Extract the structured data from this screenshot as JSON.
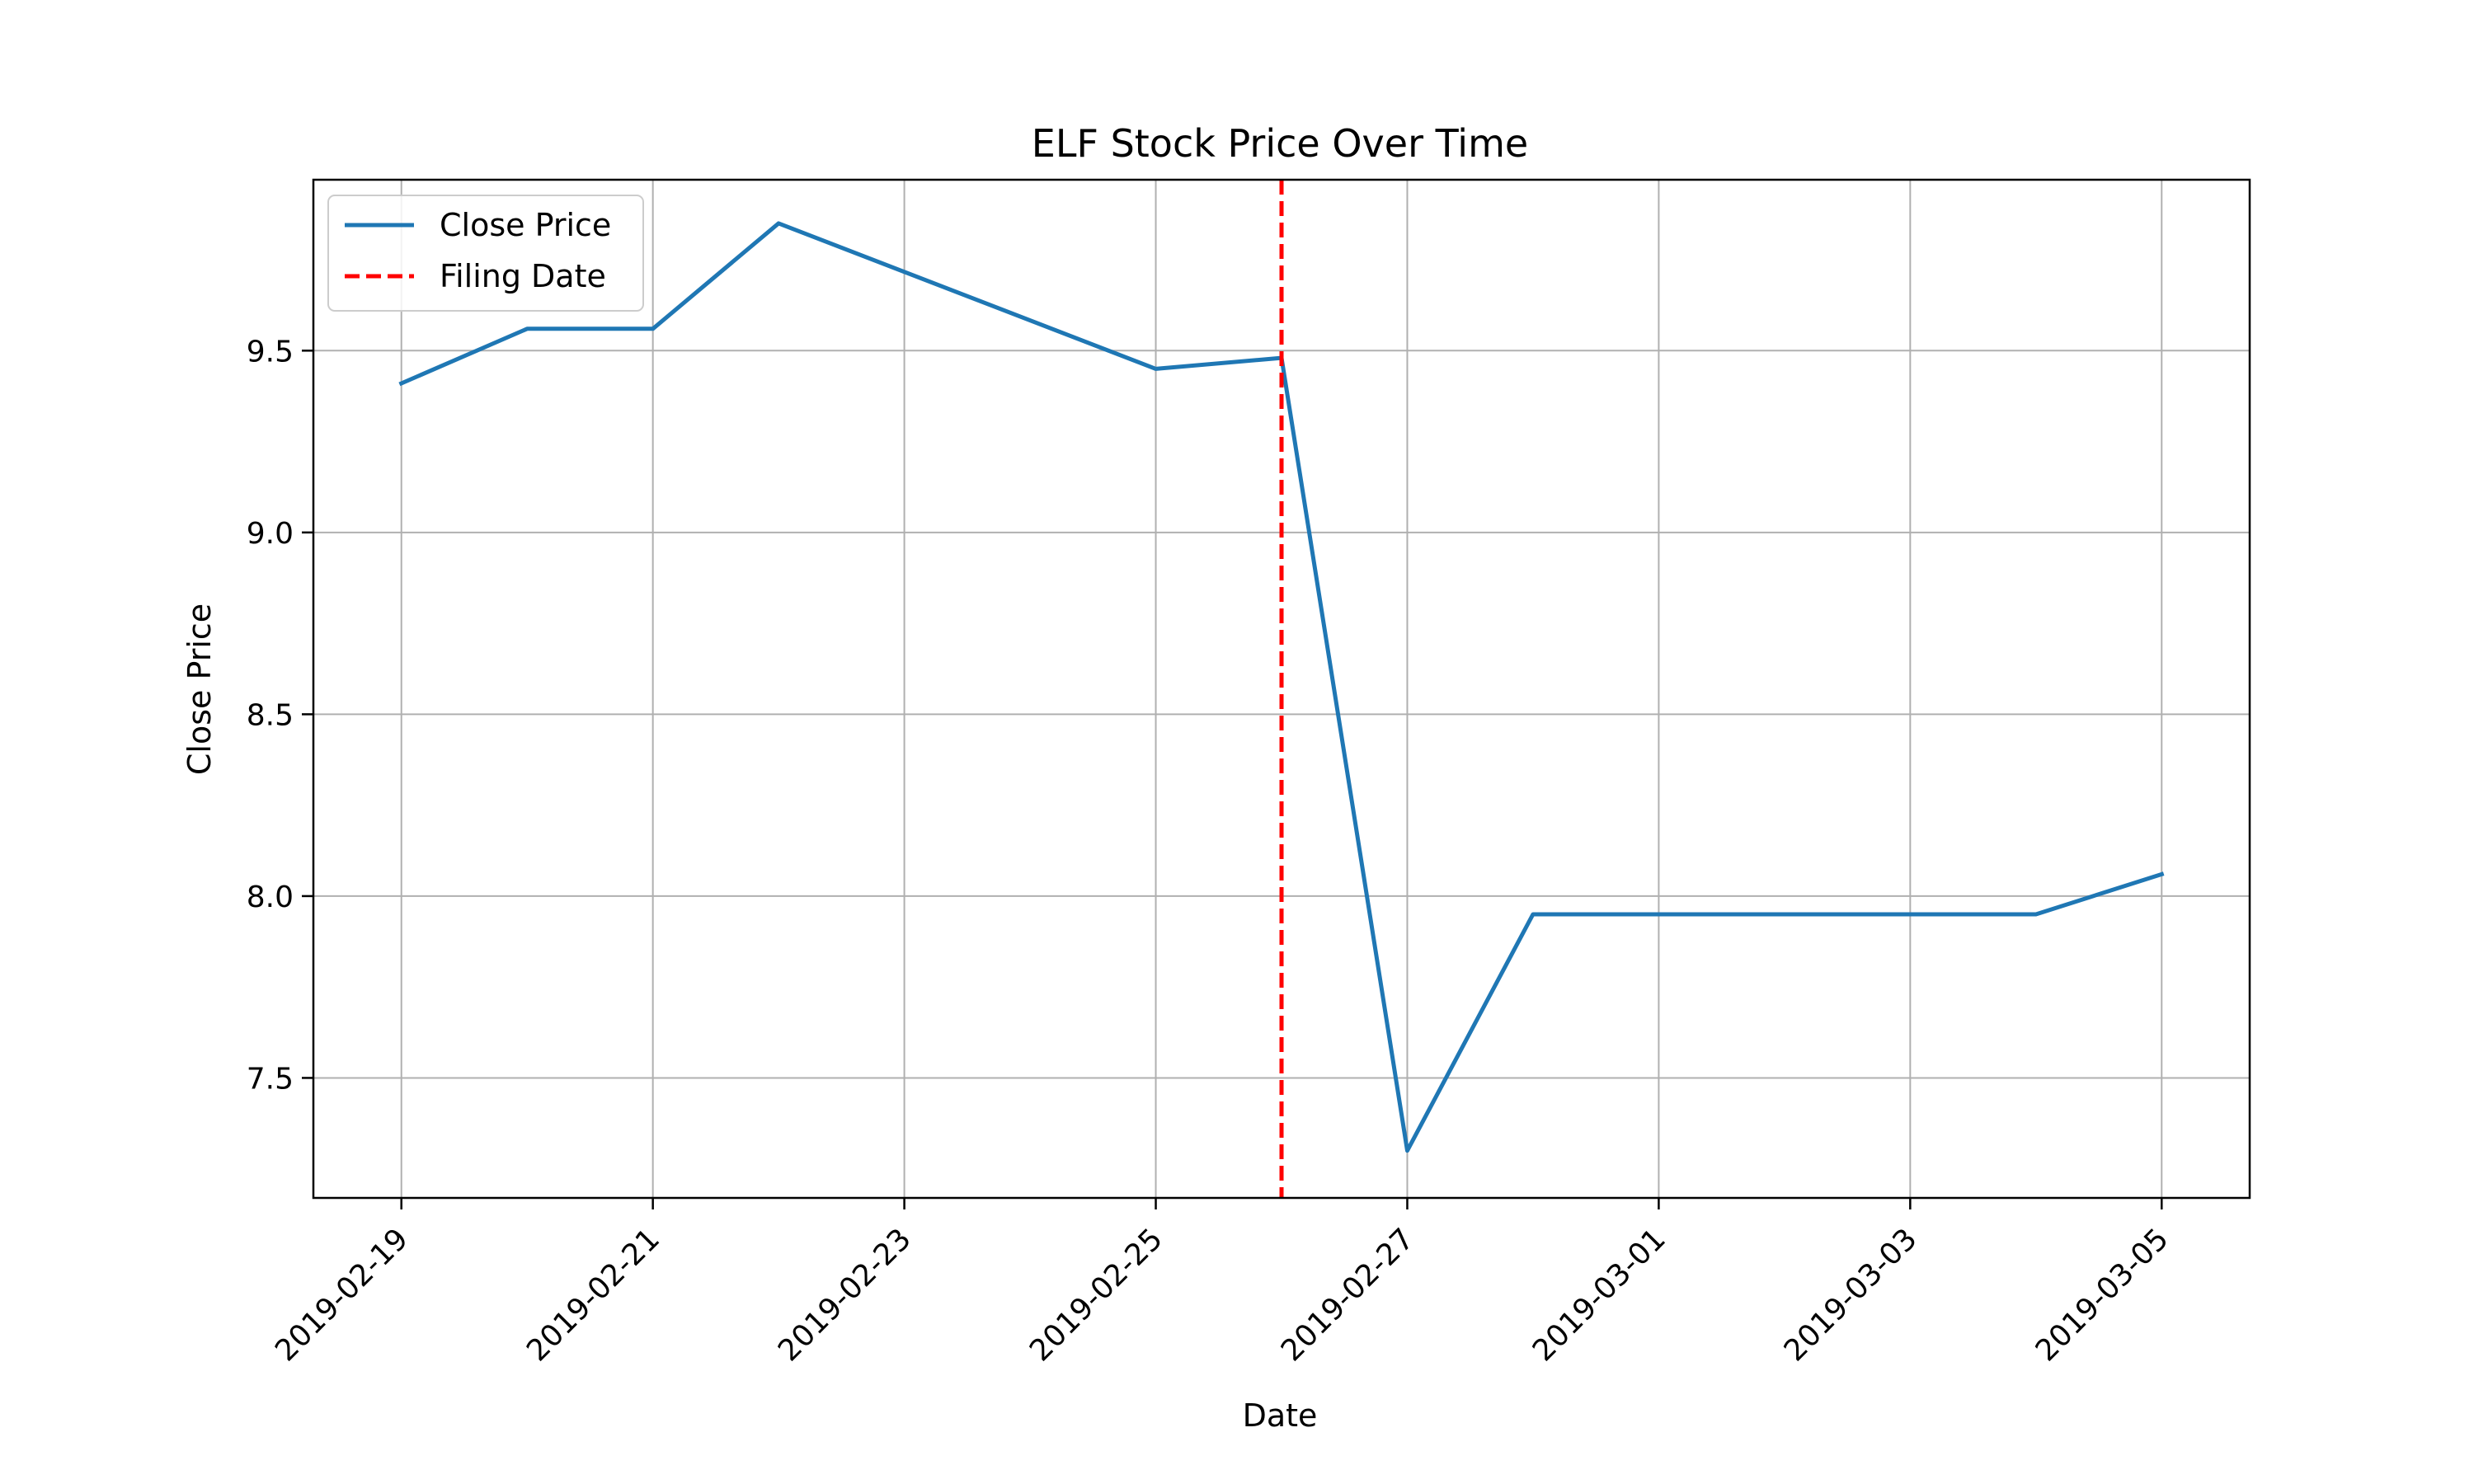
{
  "chart_data": {
    "type": "line",
    "title": "ELF Stock Price Over Time",
    "xlabel": "Date",
    "ylabel": "Close Price",
    "x": [
      "2019-02-19",
      "2019-02-20",
      "2019-02-21",
      "2019-02-22",
      "2019-02-25",
      "2019-02-26",
      "2019-02-27",
      "2019-02-28",
      "2019-03-01",
      "2019-03-04",
      "2019-03-05"
    ],
    "series": [
      {
        "name": "Close Price",
        "color": "#1f77b4",
        "values": [
          9.41,
          9.56,
          9.56,
          9.85,
          9.45,
          9.48,
          7.3,
          7.95,
          7.95,
          7.95,
          8.06
        ]
      }
    ],
    "vline": {
      "name": "Filing Date",
      "x": "2019-02-26",
      "color": "#ff0000",
      "style": "dashed"
    },
    "xlim": [
      "2018-02-18",
      "2019-03-05"
    ],
    "ylim": [
      7.17,
      9.97
    ],
    "xticks": [
      "2019-02-19",
      "2019-02-21",
      "2019-02-23",
      "2019-02-25",
      "2019-02-27",
      "2019-03-01",
      "2019-03-03",
      "2019-03-05"
    ],
    "yticks": [
      "7.5",
      "8.0",
      "8.5",
      "9.0",
      "9.5"
    ],
    "grid": true,
    "legend": {
      "position": "top-left",
      "entries": [
        "Close Price",
        "Filing Date"
      ]
    }
  }
}
